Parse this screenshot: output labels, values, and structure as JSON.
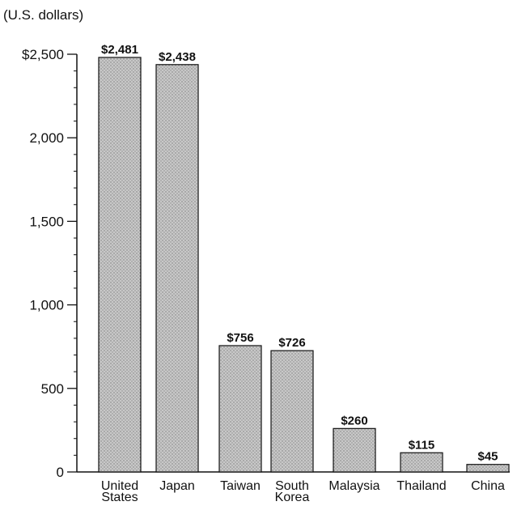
{
  "chart_data": {
    "type": "bar",
    "units_label": "(U.S. dollars)",
    "categories": [
      [
        "United",
        "States"
      ],
      [
        "Japan"
      ],
      [
        "Taiwan"
      ],
      [
        "South",
        "Korea"
      ],
      [
        "Malaysia"
      ],
      [
        "Thailand"
      ],
      [
        "China"
      ]
    ],
    "values": [
      2481,
      2438,
      756,
      726,
      260,
      115,
      45
    ],
    "value_labels": [
      "$2,481",
      "$2,438",
      "$756",
      "$726",
      "$260",
      "$115",
      "$45"
    ],
    "y_ticks": [
      0,
      500,
      1000,
      1500,
      2000,
      2500
    ],
    "y_tick_labels": [
      "0",
      "500",
      "1,000",
      "1,500",
      "2,000",
      "$2,500"
    ],
    "y_minor_step": 100,
    "ylim": [
      0,
      2500
    ],
    "grid": false,
    "legend": "none",
    "bar_fill": "#bdbdbd",
    "bar_stroke": "#111111",
    "axis_color": "#111111"
  }
}
